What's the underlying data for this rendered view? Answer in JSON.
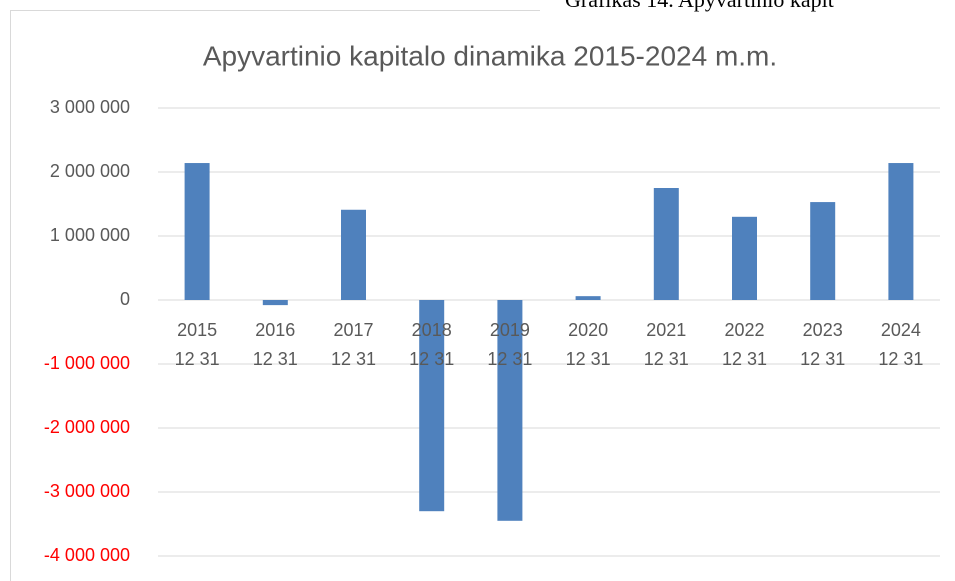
{
  "chart_data": {
    "type": "bar",
    "caption": "Grafikas 14. Apyvartinio kapit",
    "title": "Apyvartinio kapitalo dinamika 2015-2024 m.m.",
    "categories": [
      [
        "2015",
        "12 31"
      ],
      [
        "2016",
        "12 31"
      ],
      [
        "2017",
        "12 31"
      ],
      [
        "2018",
        "12 31"
      ],
      [
        "2019",
        "12 31"
      ],
      [
        "2020",
        "12 31"
      ],
      [
        "2021",
        "12 31"
      ],
      [
        "2022",
        "12 31"
      ],
      [
        "2023",
        "12 31"
      ],
      [
        "2024",
        "12 31"
      ]
    ],
    "values": [
      2140000,
      -80000,
      1410000,
      -3300000,
      -3450000,
      60000,
      1750000,
      1300000,
      1530000,
      2140000
    ],
    "color": "#4f81bd",
    "negative_tick_color": "#ff0000",
    "ylim": [
      -4000000,
      3000000
    ],
    "yticks": [
      {
        "value": -4000000,
        "label": "-4 000 000"
      },
      {
        "value": -3000000,
        "label": "-3 000 000"
      },
      {
        "value": -2000000,
        "label": "-2 000 000"
      },
      {
        "value": -1000000,
        "label": "-1 000 000"
      },
      0,
      {
        "value": 1000000,
        "label": "1 000 000"
      },
      {
        "value": 2000000,
        "label": "2 000 000"
      },
      {
        "value": 3000000,
        "label": "3 000 000"
      }
    ],
    "grid": true
  }
}
